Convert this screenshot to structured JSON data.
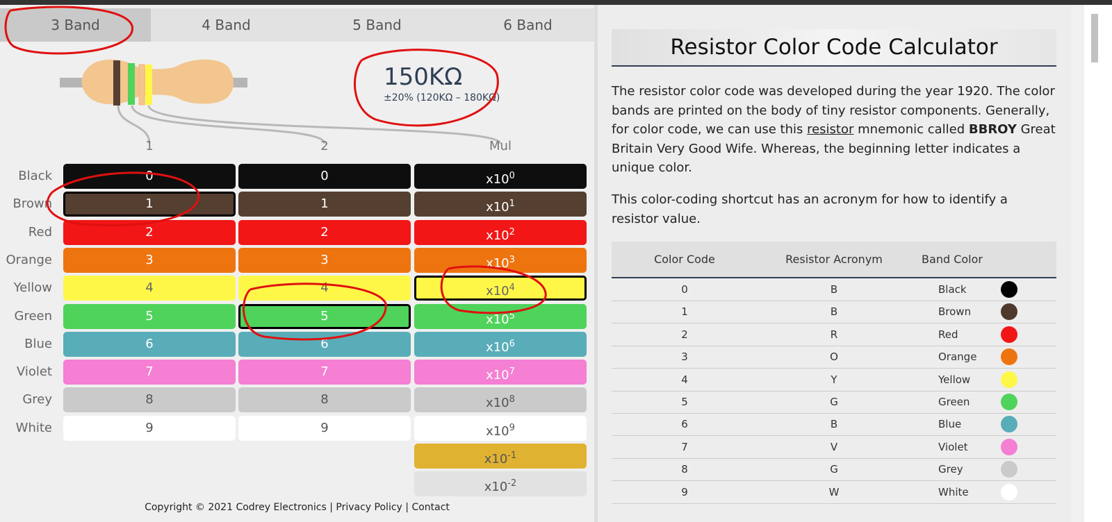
{
  "tabs": [
    "3 Band",
    "4 Band",
    "5 Band",
    "6 Band"
  ],
  "result": {
    "value": "150KΩ",
    "tolerance": "±20% (120KΩ – 180KΩ)"
  },
  "columns": [
    "1",
    "2",
    "Mul"
  ],
  "rows": [
    {
      "name": "Black",
      "band1": "0",
      "band2": "0",
      "mult": {
        "base": "x10",
        "exp": "0"
      },
      "color": "#0e0e0e",
      "text": "#ffffff"
    },
    {
      "name": "Brown",
      "band1": "1",
      "band2": "1",
      "mult": {
        "base": "x10",
        "exp": "1"
      },
      "color": "#553f31",
      "text": "#ffffff"
    },
    {
      "name": "Red",
      "band1": "2",
      "band2": "2",
      "mult": {
        "base": "x10",
        "exp": "2"
      },
      "color": "#f21616",
      "text": "#ffffff"
    },
    {
      "name": "Orange",
      "band1": "3",
      "band2": "3",
      "mult": {
        "base": "x10",
        "exp": "3"
      },
      "color": "#ee7410",
      "text": "#ffffff"
    },
    {
      "name": "Yellow",
      "band1": "4",
      "band2": "4",
      "mult": {
        "base": "x10",
        "exp": "4"
      },
      "color": "#fff748",
      "text": "#666666"
    },
    {
      "name": "Green",
      "band1": "5",
      "band2": "5",
      "mult": {
        "base": "x10",
        "exp": "5"
      },
      "color": "#4fd35b",
      "text": "#ffffff"
    },
    {
      "name": "Blue",
      "band1": "6",
      "band2": "6",
      "mult": {
        "base": "x10",
        "exp": "6"
      },
      "color": "#59adb8",
      "text": "#ffffff"
    },
    {
      "name": "Violet",
      "band1": "7",
      "band2": "7",
      "mult": {
        "base": "x10",
        "exp": "7"
      },
      "color": "#f47fd3",
      "text": "#ffffff"
    },
    {
      "name": "Grey",
      "band1": "8",
      "band2": "8",
      "mult": {
        "base": "x10",
        "exp": "8"
      },
      "color": "#cacaca",
      "text": "#555555"
    },
    {
      "name": "White",
      "band1": "9",
      "band2": "9",
      "mult": {
        "base": "x10",
        "exp": "9"
      },
      "color": "#ffffff",
      "text": "#555555"
    }
  ],
  "extra_multipliers": [
    {
      "base": "x10",
      "exp": "-1",
      "color": "#e0b232",
      "text": "#555555"
    },
    {
      "base": "x10",
      "exp": "-2",
      "color": "#e2e2e2",
      "text": "#555555"
    }
  ],
  "footer": {
    "copyright": "Copyright © 2021 Codrey Electronics",
    "sep1": "|",
    "privacy": "Privacy Policy",
    "sep2": "|",
    "contact": "Contact"
  },
  "article": {
    "title": "Resistor Color Code Calculator",
    "paragraph1": [
      "The resistor color code was developed during the year 1920. The color bands are printed on the body of tiny resistor components. Generally, for color code, we can use this ",
      "resistor",
      " mnemonic called ",
      "BBROY",
      " Great Britain Very Good Wife. Whereas, the beginning letter indicates a unique color."
    ],
    "paragraph2": "This color-coding shortcut has an acronym for how to identify a resistor value.",
    "table": {
      "headers": [
        "Color Code",
        "Resistor Acronym",
        "Band Color"
      ],
      "rows": [
        {
          "code": "0",
          "acronym": "B",
          "color": "Black",
          "swatch": "#000000"
        },
        {
          "code": "1",
          "acronym": "B",
          "color": "Brown",
          "swatch": "#4e3a2c"
        },
        {
          "code": "2",
          "acronym": "R",
          "color": "Red",
          "swatch": "#f21616"
        },
        {
          "code": "3",
          "acronym": "O",
          "color": "Orange",
          "swatch": "#ee7410"
        },
        {
          "code": "4",
          "acronym": "Y",
          "color": "Yellow",
          "swatch": "#fff748"
        },
        {
          "code": "5",
          "acronym": "G",
          "color": "Green",
          "swatch": "#4fd35b"
        },
        {
          "code": "6",
          "acronym": "B",
          "color": "Blue",
          "swatch": "#59adb8"
        },
        {
          "code": "7",
          "acronym": "V",
          "color": "Violet",
          "swatch": "#f47fd3"
        },
        {
          "code": "8",
          "acronym": "G",
          "color": "Grey",
          "swatch": "#cacaca"
        },
        {
          "code": "9",
          "acronym": "W",
          "color": "White",
          "swatch": "#ffffff"
        }
      ]
    }
  }
}
